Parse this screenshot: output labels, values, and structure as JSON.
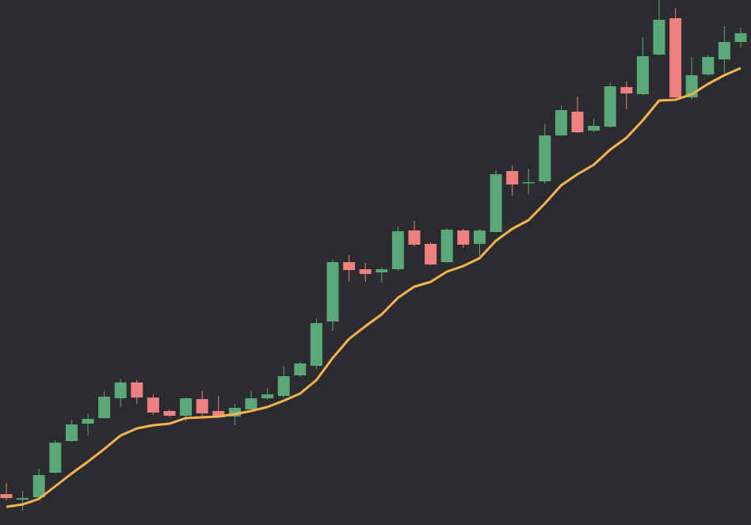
{
  "chart_data": {
    "type": "candlestick",
    "ylim": [
      0,
      663
    ],
    "up_color": "#5aa878",
    "down_color": "#ef8080",
    "background": "#2c2c30",
    "open": [
      39,
      32,
      35,
      66,
      106,
      128,
      135,
      160,
      180,
      161,
      144,
      138,
      159,
      144,
      137,
      146,
      160,
      163,
      189,
      201,
      257,
      332,
      323,
      319,
      323,
      372,
      355,
      332,
      372,
      355,
      370,
      447,
      432,
      434,
      492,
      522,
      498,
      503,
      553,
      544,
      594,
      640,
      540,
      569,
      588,
      610
    ],
    "high": [
      53,
      43,
      71,
      107,
      133,
      141,
      169,
      184,
      183,
      165,
      146,
      161,
      170,
      163,
      153,
      169,
      173,
      201,
      206,
      261,
      336,
      341,
      331,
      326,
      377,
      384,
      357,
      375,
      374,
      374,
      448,
      454,
      450,
      506,
      530,
      541,
      513,
      559,
      560,
      616,
      663,
      653,
      591,
      594,
      630,
      628
    ],
    "low": [
      31,
      18,
      33,
      65,
      105,
      113,
      134,
      149,
      153,
      139,
      136,
      131,
      135,
      135,
      126,
      145,
      158,
      161,
      187,
      197,
      245,
      307,
      307,
      306,
      321,
      352,
      328,
      331,
      350,
      340,
      369,
      416,
      417,
      431,
      491,
      495,
      496,
      502,
      525,
      543,
      593,
      539,
      537,
      567,
      571,
      603
    ],
    "close": [
      34,
      34,
      63,
      104,
      127,
      134,
      162,
      180,
      161,
      142,
      138,
      160,
      141,
      136,
      148,
      160,
      165,
      188,
      204,
      255,
      332,
      322,
      317,
      323,
      371,
      354,
      329,
      373,
      354,
      372,
      443,
      430,
      433,
      492,
      524,
      496,
      504,
      554,
      545,
      592,
      638,
      540,
      568,
      591,
      610,
      621
    ],
    "moving_average": {
      "color": "#f5b450",
      "values": [
        23,
        26,
        33,
        49,
        65,
        80,
        96,
        113,
        122,
        126,
        128,
        135,
        136,
        137,
        140,
        144,
        149,
        157,
        166,
        183,
        211,
        235,
        251,
        266,
        287,
        301,
        307,
        320,
        327,
        337,
        359,
        374,
        385,
        406,
        429,
        443,
        455,
        474,
        489,
        511,
        536,
        537,
        544,
        557,
        568,
        577
      ]
    }
  }
}
